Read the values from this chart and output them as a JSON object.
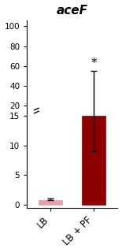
{
  "title": "aceF",
  "categories": [
    "LB",
    "LB + PF"
  ],
  "bar_values": [
    0.8,
    15.0
  ],
  "bar_colors": [
    "#e8a0a8",
    "#8b0000"
  ],
  "error_bars": [
    0.3,
    40.0
  ],
  "yticks_bottom": [
    0,
    5,
    10,
    15
  ],
  "yticks_top": [
    20,
    40,
    60,
    80,
    100
  ],
  "background_color": "#ffffff",
  "bar_width": 0.55,
  "title_fontsize": 11,
  "tick_fontsize": 7.5,
  "label_fontsize": 8.5,
  "asterisk_fontsize": 11
}
